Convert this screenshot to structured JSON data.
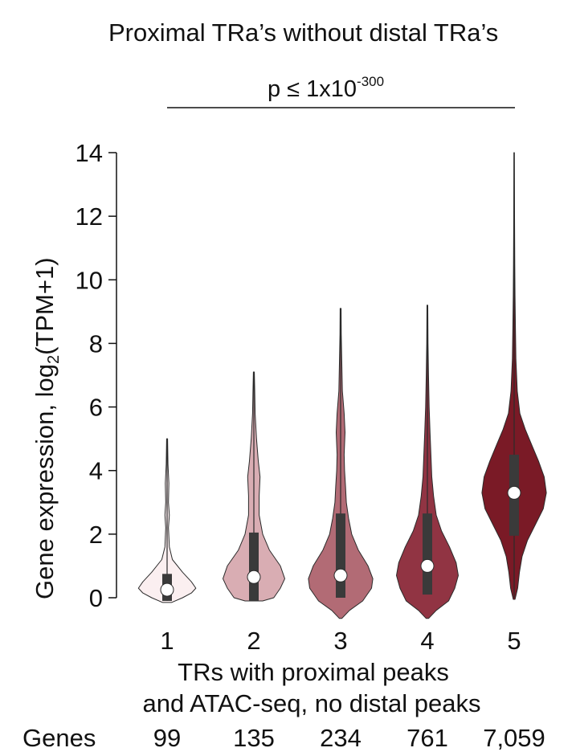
{
  "chart_data": {
    "type": "violin",
    "title": "Proximal TRa’s without distal TRa’s",
    "annotation": {
      "prefix": "p ≤ 1x10",
      "exponent": "-300"
    },
    "ylabel": {
      "main": "Gene expression, log",
      "sub": "2",
      "tail": "(TPM+1)"
    },
    "xlabel_lines": [
      "TRs with proximal peaks",
      "and ATAC-seq, no distal peaks"
    ],
    "ylim": [
      0,
      14
    ],
    "yticks": [
      0,
      2,
      4,
      6,
      8,
      10,
      12,
      14
    ],
    "categories": [
      "1",
      "2",
      "3",
      "4",
      "5"
    ],
    "genes_label": "Genes",
    "gene_counts": [
      "99",
      "135",
      "234",
      "761",
      "7,059"
    ],
    "box_color": "#3a3a3a",
    "median_color": "#ffffff",
    "groups": [
      {
        "category": "1",
        "color": "#fbeff0",
        "min": -0.1,
        "max": 5.0,
        "q1": -0.1,
        "median": 0.25,
        "q3": 0.75,
        "profile": [
          [
            -0.15,
            0.1
          ],
          [
            0.0,
            0.35
          ],
          [
            0.15,
            0.55
          ],
          [
            0.3,
            0.65
          ],
          [
            0.5,
            0.55
          ],
          [
            0.8,
            0.35
          ],
          [
            1.2,
            0.12
          ],
          [
            1.6,
            0.05
          ],
          [
            2.2,
            0.03
          ],
          [
            2.6,
            0.05
          ],
          [
            3.0,
            0.03
          ],
          [
            3.6,
            0.04
          ],
          [
            4.2,
            0.02
          ],
          [
            5.0,
            0.01
          ]
        ]
      },
      {
        "category": "2",
        "color": "#d9adb3",
        "min": -0.1,
        "max": 7.1,
        "q1": -0.1,
        "median": 0.65,
        "q3": 2.05,
        "profile": [
          [
            -0.1,
            0.2
          ],
          [
            0.0,
            0.45
          ],
          [
            0.3,
            0.6
          ],
          [
            0.6,
            0.7
          ],
          [
            1.0,
            0.6
          ],
          [
            1.5,
            0.35
          ],
          [
            2.0,
            0.2
          ],
          [
            2.6,
            0.12
          ],
          [
            3.2,
            0.12
          ],
          [
            3.8,
            0.14
          ],
          [
            4.3,
            0.1
          ],
          [
            5.0,
            0.06
          ],
          [
            5.8,
            0.03
          ],
          [
            6.5,
            0.02
          ],
          [
            7.1,
            0.01
          ]
        ]
      },
      {
        "category": "3",
        "color": "#b26b75",
        "min": 0.0,
        "max": 9.1,
        "q1": 0.0,
        "median": 0.7,
        "q3": 2.65,
        "profile": [
          [
            -0.65,
            0.03
          ],
          [
            -0.4,
            0.2
          ],
          [
            -0.1,
            0.5
          ],
          [
            0.3,
            0.7
          ],
          [
            0.6,
            0.73
          ],
          [
            1.0,
            0.62
          ],
          [
            1.5,
            0.4
          ],
          [
            2.0,
            0.25
          ],
          [
            2.5,
            0.18
          ],
          [
            3.0,
            0.13
          ],
          [
            3.5,
            0.11
          ],
          [
            4.0,
            0.09
          ],
          [
            4.5,
            0.08
          ],
          [
            5.2,
            0.1
          ],
          [
            5.8,
            0.08
          ],
          [
            6.5,
            0.04
          ],
          [
            7.5,
            0.025
          ],
          [
            8.3,
            0.015
          ],
          [
            9.1,
            0.01
          ]
        ]
      },
      {
        "category": "4",
        "color": "#913443",
        "min": 0.1,
        "max": 9.2,
        "q1": 0.1,
        "median": 1.0,
        "q3": 2.65,
        "profile": [
          [
            -0.65,
            0.03
          ],
          [
            -0.4,
            0.2
          ],
          [
            -0.1,
            0.48
          ],
          [
            0.3,
            0.62
          ],
          [
            0.7,
            0.7
          ],
          [
            1.1,
            0.65
          ],
          [
            1.6,
            0.5
          ],
          [
            2.1,
            0.32
          ],
          [
            2.6,
            0.2
          ],
          [
            3.2,
            0.14
          ],
          [
            3.8,
            0.1
          ],
          [
            4.5,
            0.08
          ],
          [
            5.2,
            0.06
          ],
          [
            6.0,
            0.04
          ],
          [
            7.0,
            0.025
          ],
          [
            8.0,
            0.015
          ],
          [
            9.2,
            0.01
          ]
        ]
      },
      {
        "category": "5",
        "color": "#7a1a26",
        "min": 0.0,
        "max": 14.0,
        "q1": 1.95,
        "median": 3.3,
        "q3": 4.5,
        "profile": [
          [
            -0.05,
            0.02
          ],
          [
            0.3,
            0.08
          ],
          [
            0.8,
            0.12
          ],
          [
            1.3,
            0.18
          ],
          [
            1.8,
            0.3
          ],
          [
            2.3,
            0.48
          ],
          [
            2.8,
            0.66
          ],
          [
            3.3,
            0.73
          ],
          [
            3.8,
            0.68
          ],
          [
            4.3,
            0.55
          ],
          [
            4.8,
            0.4
          ],
          [
            5.3,
            0.25
          ],
          [
            5.8,
            0.13
          ],
          [
            6.5,
            0.07
          ],
          [
            7.5,
            0.04
          ],
          [
            8.5,
            0.03
          ],
          [
            9.5,
            0.02
          ],
          [
            10.5,
            0.015
          ],
          [
            12.0,
            0.01
          ],
          [
            14.0,
            0.005
          ]
        ]
      }
    ]
  }
}
